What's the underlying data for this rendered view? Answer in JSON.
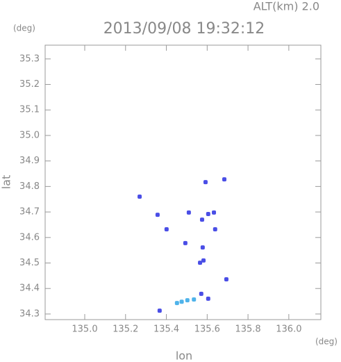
{
  "chart_data": {
    "type": "scatter",
    "title": "2013/09/08 19:32:12",
    "subtitle": "ALT(km) 2.0",
    "x_label": "lon",
    "y_label": "lat",
    "x_unit": "(deg)",
    "y_unit": "(deg)",
    "xlim": [
      134.806,
      136.157
    ],
    "ylim": [
      34.278,
      35.354
    ],
    "xticks": [
      {
        "value": 135,
        "label": "135.0"
      },
      135.2,
      135.4,
      135.6,
      135.8,
      {
        "value": 136,
        "label": "136.0"
      }
    ],
    "yticks": [
      34.3,
      34.4,
      34.5,
      34.6,
      34.7,
      34.8,
      34.9,
      {
        "value": 35,
        "label": "35.0"
      },
      35.1,
      35.2,
      35.3
    ],
    "grid": false,
    "series": [
      {
        "color": "#4a4ee6",
        "x": [
          135.269,
          135.592,
          135.684,
          135.357,
          135.401,
          135.51,
          135.575,
          135.605,
          135.633,
          135.639,
          135.578,
          135.582,
          135.565,
          135.493,
          135.694,
          135.605,
          135.571,
          135.367
        ],
        "values": [
          34.76,
          34.817,
          34.828,
          34.689,
          34.632,
          34.698,
          34.67,
          34.692,
          34.698,
          34.632,
          34.561,
          34.51,
          34.501,
          34.578,
          34.436,
          34.36,
          34.379,
          34.313
        ]
      },
      {
        "color": "#4fb3ea",
        "x": [
          135.503,
          135.452,
          135.475,
          135.535
        ],
        "values": [
          34.354,
          34.343,
          34.348,
          34.357
        ]
      }
    ]
  }
}
